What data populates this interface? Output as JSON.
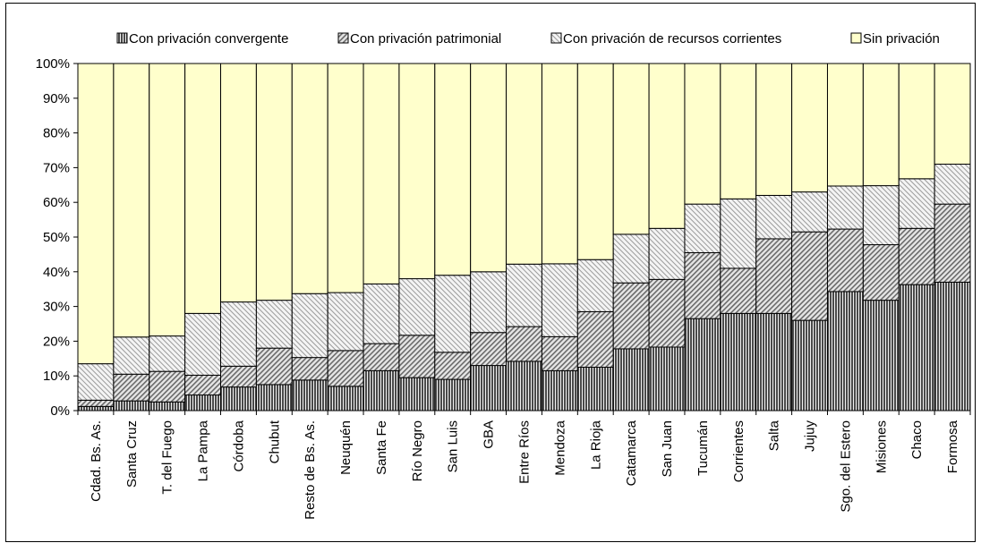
{
  "chart_data": {
    "type": "bar",
    "stacked": true,
    "percent": true,
    "categories": [
      "Cdad. Bs. As.",
      "Santa Cruz",
      "T. del Fuego",
      "La Pampa",
      "Córdoba",
      "Chubut",
      "Resto de Bs. As.",
      "Neuquén",
      "Santa Fe",
      "Río Negro",
      "San Luis",
      "GBA",
      "Entre Ríos",
      "Mendoza",
      "La Rioja",
      "Catamarca",
      "San Juan",
      "Tucumán",
      "Corrientes",
      "Salta",
      "Jujuy",
      "Sgo. del Estero",
      "Misiones",
      "Chaco",
      "Formosa"
    ],
    "series": [
      {
        "name": "Con privación convergente",
        "color": "#6e6e6e",
        "pattern": "vertical-dense",
        "values": [
          1.2,
          2.8,
          2.5,
          4.5,
          6.8,
          7.5,
          8.8,
          7.0,
          11.5,
          9.5,
          9.0,
          13.0,
          14.2,
          11.5,
          12.5,
          17.8,
          18.3,
          26.5,
          28.0,
          28.0,
          26.0,
          34.3,
          31.8,
          36.3,
          37.0
        ]
      },
      {
        "name": "Con privación patrimonial",
        "color": "#9a9a9a",
        "pattern": "diagonal-dense",
        "values": [
          1.8,
          7.7,
          8.8,
          5.7,
          6.0,
          10.5,
          6.5,
          10.3,
          7.8,
          12.2,
          7.8,
          9.5,
          10.0,
          9.8,
          16.0,
          19.0,
          19.5,
          19.0,
          13.0,
          21.5,
          25.5,
          18.0,
          16.0,
          16.2,
          22.5
        ]
      },
      {
        "name": "Con privación de recursos corrientes",
        "color": "#c8c8c8",
        "pattern": "diagonal-light",
        "values": [
          10.5,
          10.7,
          10.2,
          17.8,
          18.5,
          13.8,
          18.4,
          16.7,
          17.2,
          16.3,
          22.2,
          17.5,
          18.0,
          21.0,
          15.0,
          14.0,
          14.7,
          14.0,
          20.0,
          12.5,
          11.5,
          12.4,
          17.0,
          14.3,
          11.5
        ]
      },
      {
        "name": "Sin privación",
        "color": "#ffffcc",
        "pattern": "solid",
        "values": [
          86.5,
          78.8,
          78.5,
          72.0,
          68.7,
          68.2,
          66.3,
          66.0,
          63.5,
          62.0,
          61.0,
          60.0,
          57.8,
          57.7,
          56.5,
          49.2,
          47.5,
          40.5,
          39.0,
          38.0,
          37.0,
          35.3,
          35.2,
          33.2,
          29.0
        ]
      }
    ],
    "yticks": [
      "0%",
      "10%",
      "20%",
      "30%",
      "40%",
      "50%",
      "60%",
      "70%",
      "80%",
      "90%",
      "100%"
    ],
    "ylim": [
      0,
      100
    ],
    "title": "",
    "xlabel": "",
    "ylabel": "",
    "legend_position": "top",
    "grid": false
  }
}
